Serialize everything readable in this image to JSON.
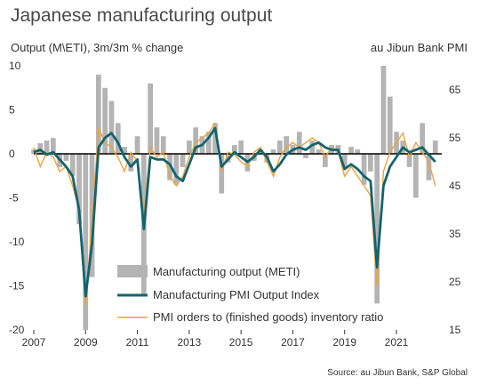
{
  "title": "Japanese manufacturing output",
  "source": "Source: au Jibun Bank, S&P Global",
  "chart_data": {
    "type": "bar",
    "title": "Japanese manufacturing output",
    "y_left_label": "Output (M\\ETI), 3m/3m % change",
    "y_right_label": "au Jibun Bank PMI",
    "y_left_ticks": [
      10,
      5,
      0,
      -5,
      -10,
      -15,
      -20
    ],
    "y_right_ticks": [
      65,
      55,
      45,
      35,
      25,
      15
    ],
    "x_ticks": [
      "2007",
      "2009",
      "2011",
      "2013",
      "2015",
      "2017",
      "2019",
      "2021"
    ],
    "ylim_left": [
      -20,
      10
    ],
    "ylim_right": [
      15,
      70
    ],
    "grid": false,
    "legend_position": "bottom-center",
    "colors": {
      "meti_bars": "#b4b4b4",
      "pmi_output": "#12646f",
      "orders_inventory": "#f0a23c",
      "zero_line": "#000000"
    },
    "series": [
      {
        "name": "Manufacturing output (METI)",
        "kind": "bar",
        "axis": "left",
        "x": [
          2007.0,
          2007.25,
          2007.5,
          2007.75,
          2008.0,
          2008.25,
          2008.5,
          2008.75,
          2009.0,
          2009.25,
          2009.5,
          2009.75,
          2010.0,
          2010.25,
          2010.5,
          2010.75,
          2011.0,
          2011.25,
          2011.5,
          2011.75,
          2012.0,
          2012.25,
          2012.5,
          2012.75,
          2013.0,
          2013.25,
          2013.5,
          2013.75,
          2014.0,
          2014.25,
          2014.5,
          2014.75,
          2015.0,
          2015.25,
          2015.5,
          2015.75,
          2016.0,
          2016.25,
          2016.5,
          2016.75,
          2017.0,
          2017.25,
          2017.5,
          2017.75,
          2018.0,
          2018.25,
          2018.5,
          2018.75,
          2019.0,
          2019.25,
          2019.5,
          2019.75,
          2020.0,
          2020.25,
          2020.5,
          2020.75,
          2021.0,
          2021.25,
          2021.5,
          2021.75,
          2022.0,
          2022.25,
          2022.5
        ],
        "values": [
          0.5,
          1.2,
          1.5,
          1.8,
          -1.5,
          -0.8,
          -2.5,
          -8.0,
          -20.0,
          -14.0,
          9.0,
          7.5,
          6.0,
          3.5,
          0.8,
          -2.0,
          2.0,
          -16.0,
          8.0,
          3.0,
          2.0,
          -3.0,
          -3.5,
          -1.5,
          1.5,
          3.0,
          2.0,
          2.5,
          3.5,
          -4.5,
          -1.0,
          1.0,
          1.5,
          -2.0,
          -0.8,
          0.5,
          -1.0,
          0.5,
          1.5,
          2.0,
          1.0,
          2.5,
          -0.5,
          1.5,
          0.5,
          -1.5,
          1.0,
          1.0,
          -1.5,
          0.8,
          0.5,
          -3.5,
          -2.0,
          -17.0,
          10.0,
          6.5,
          2.5,
          1.5,
          -1.5,
          -5.0,
          3.5,
          -3.0,
          1.5
        ]
      },
      {
        "name": "Manufacturing PMI Output Index",
        "kind": "line",
        "axis": "right",
        "x": [
          2007.0,
          2007.25,
          2007.5,
          2007.75,
          2008.0,
          2008.25,
          2008.5,
          2008.75,
          2009.0,
          2009.25,
          2009.5,
          2009.75,
          2010.0,
          2010.25,
          2010.5,
          2010.75,
          2011.0,
          2011.25,
          2011.5,
          2011.75,
          2012.0,
          2012.25,
          2012.5,
          2012.75,
          2013.0,
          2013.25,
          2013.5,
          2013.75,
          2014.0,
          2014.25,
          2014.5,
          2014.75,
          2015.0,
          2015.25,
          2015.5,
          2015.75,
          2016.0,
          2016.25,
          2016.5,
          2016.75,
          2017.0,
          2017.25,
          2017.5,
          2017.75,
          2018.0,
          2018.25,
          2018.5,
          2018.75,
          2019.0,
          2019.25,
          2019.5,
          2019.75,
          2020.0,
          2020.25,
          2020.5,
          2020.75,
          2021.0,
          2021.25,
          2021.5,
          2021.75,
          2022.0,
          2022.25,
          2022.5
        ],
        "values": [
          52.0,
          52.5,
          51.5,
          52.0,
          50.5,
          49.0,
          47.0,
          40.0,
          22.0,
          33.0,
          53.0,
          55.0,
          56.0,
          54.0,
          51.0,
          49.0,
          50.5,
          36.0,
          51.0,
          50.5,
          50.5,
          49.5,
          47.0,
          46.0,
          49.5,
          53.0,
          53.5,
          55.0,
          57.0,
          49.0,
          50.5,
          52.0,
          51.0,
          50.0,
          51.0,
          52.5,
          51.0,
          48.0,
          49.5,
          51.5,
          52.5,
          53.0,
          52.5,
          53.5,
          54.0,
          53.0,
          52.5,
          52.5,
          48.5,
          49.5,
          48.5,
          47.0,
          46.0,
          28.0,
          45.0,
          49.0,
          51.0,
          53.0,
          52.0,
          52.5,
          53.0,
          51.5,
          50.0
        ]
      },
      {
        "name": "PMI orders to (finished goods) inventory ratio",
        "kind": "line",
        "axis": "right",
        "x": [
          2007.0,
          2007.25,
          2007.5,
          2007.75,
          2008.0,
          2008.25,
          2008.5,
          2008.75,
          2009.0,
          2009.25,
          2009.5,
          2009.75,
          2010.0,
          2010.25,
          2010.5,
          2010.75,
          2011.0,
          2011.25,
          2011.5,
          2011.75,
          2012.0,
          2012.25,
          2012.5,
          2012.75,
          2013.0,
          2013.25,
          2013.5,
          2013.75,
          2014.0,
          2014.25,
          2014.5,
          2014.75,
          2015.0,
          2015.25,
          2015.5,
          2015.75,
          2016.0,
          2016.25,
          2016.5,
          2016.75,
          2017.0,
          2017.25,
          2017.5,
          2017.75,
          2018.0,
          2018.25,
          2018.5,
          2018.75,
          2019.0,
          2019.25,
          2019.5,
          2019.75,
          2020.0,
          2020.25,
          2020.5,
          2020.75,
          2021.0,
          2021.25,
          2021.5,
          2021.75,
          2022.0,
          2022.25,
          2022.5
        ],
        "values": [
          53.0,
          49.0,
          52.0,
          51.0,
          48.0,
          49.0,
          45.0,
          40.0,
          20.0,
          38.0,
          57.0,
          54.0,
          53.0,
          51.0,
          48.0,
          52.0,
          50.0,
          39.0,
          53.0,
          51.0,
          52.0,
          47.0,
          45.0,
          47.0,
          51.0,
          54.0,
          55.0,
          56.0,
          58.0,
          48.0,
          52.0,
          51.5,
          50.0,
          49.0,
          52.0,
          53.0,
          50.0,
          47.0,
          51.0,
          53.0,
          54.0,
          53.0,
          54.0,
          55.0,
          54.0,
          51.0,
          53.0,
          52.0,
          47.0,
          49.0,
          47.0,
          45.0,
          43.0,
          24.0,
          48.0,
          52.0,
          54.0,
          56.0,
          51.0,
          54.0,
          52.0,
          50.0,
          45.0
        ]
      }
    ]
  }
}
